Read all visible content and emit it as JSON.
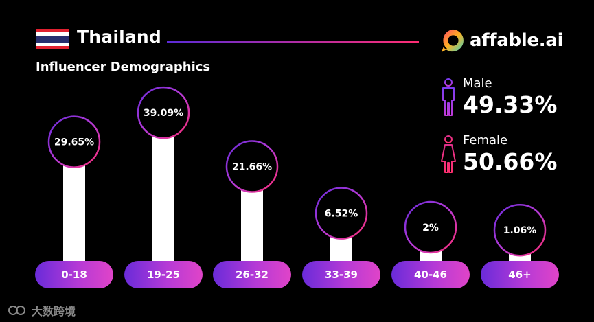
{
  "header": {
    "country": "Thailand",
    "subtitle": "Influencer Demographics",
    "logo_text": "affable.ai"
  },
  "gender": {
    "male_label": "Male",
    "male_value": "49.33%",
    "female_label": "Female",
    "female_value": "50.66%"
  },
  "colors": {
    "background": "#000000",
    "accent_purple": "#6a2bd9",
    "accent_pink": "#e044c8",
    "flag_red": "#e0202f",
    "flag_blue": "#262e6e"
  },
  "watermark": {
    "text": "大数跨境"
  },
  "chart_data": {
    "type": "bar",
    "categories": [
      "0-18",
      "19-25",
      "26-32",
      "33-39",
      "40-46",
      "46+"
    ],
    "values": [
      29.65,
      39.09,
      21.66,
      6.52,
      2,
      1.06
    ],
    "labels": [
      "29.65%",
      "39.09%",
      "21.66%",
      "6.52%",
      "2%",
      "1.06%"
    ],
    "ylim": [
      0,
      40
    ],
    "grid": false
  }
}
